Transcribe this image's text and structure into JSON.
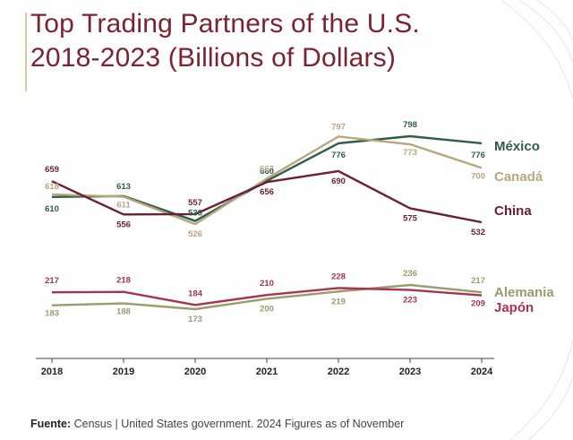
{
  "header": {
    "title_line1": "Top Trading Partners of the U.S.",
    "title_line2": "2018-2023 (Billions of Dollars)"
  },
  "footer": {
    "source_label": "Fuente:",
    "source_text": " Census | United States government. 2024 Figures as of November"
  },
  "chart_data": {
    "type": "line",
    "x": [
      "2018",
      "2019",
      "2020",
      "2021",
      "2022",
      "2023",
      "2024"
    ],
    "series": [
      {
        "name": "México",
        "color": "#2f5d46",
        "values": [
          610,
          613,
          536,
          660,
          776,
          798,
          776
        ],
        "labels": [
          "610",
          "613",
          "536",
          "660",
          "776",
          "798",
          "776"
        ]
      },
      {
        "name": "Canadá",
        "color": "#b8a67f",
        "values": [
          618,
          611,
          526,
          667,
          797,
          773,
          700
        ],
        "labels": [
          "618",
          "611",
          "526",
          "667",
          "797",
          "773",
          "700"
        ]
      },
      {
        "name": "China",
        "color": "#6b1f34",
        "values": [
          659,
          556,
          557,
          656,
          690,
          575,
          532
        ],
        "labels": [
          "659",
          "556",
          "557",
          "656",
          "690",
          "575",
          "532"
        ]
      },
      {
        "name": "Alemania",
        "color": "#9e9a6e",
        "values": [
          183,
          188,
          173,
          200,
          219,
          236,
          217
        ],
        "labels": [
          "183",
          "188",
          "173",
          "200",
          "219",
          "236",
          "217"
        ]
      },
      {
        "name": "Japón",
        "color": "#a8344f",
        "values": [
          217,
          218,
          184,
          210,
          228,
          223,
          209
        ],
        "labels": [
          "217",
          "218",
          "184",
          "210",
          "228",
          "223",
          "209"
        ]
      }
    ],
    "grid": false,
    "legend": "right-end labels"
  }
}
